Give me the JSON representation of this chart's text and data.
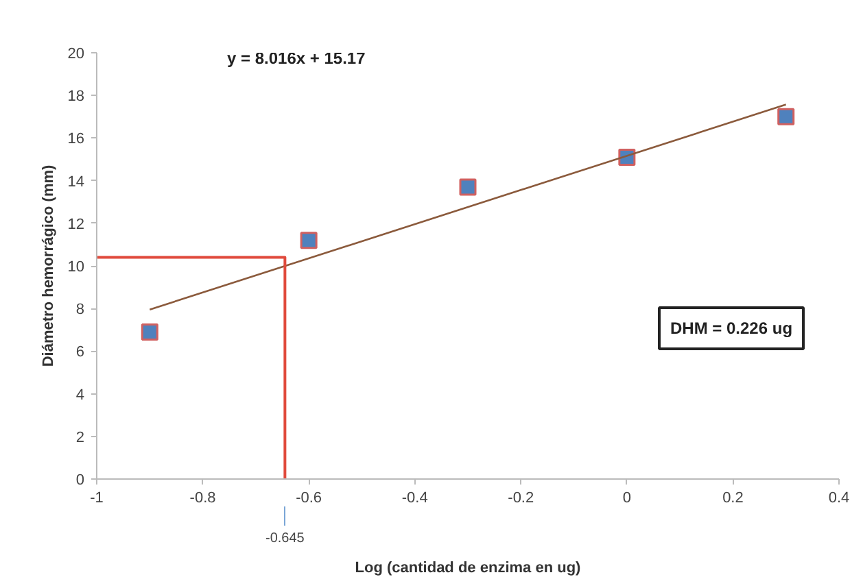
{
  "chart_data": {
    "type": "scatter",
    "xlabel": "Log (cantidad de enzima en ug)",
    "ylabel": "Diámetro hemorrágico (mm)",
    "x": [
      -0.9,
      -0.6,
      -0.3,
      0,
      0.3
    ],
    "series": [
      {
        "color": "#4f81bd",
        "marker": "square",
        "values": [
          6.9,
          11.2,
          13.7,
          15.1,
          17.0
        ]
      },
      {
        "type": "line",
        "color": "#8b5a3c",
        "x": [
          -0.9,
          0.3
        ],
        "values": [
          7.95,
          17.57
        ]
      },
      {
        "type": "line",
        "color": "#e04a3c",
        "x": [
          -1,
          -0.645,
          -0.645
        ],
        "values": [
          10.4,
          10.4,
          0
        ]
      }
    ],
    "annotations": [
      "y = 8.016x + 15.17",
      "-0.645",
      "DHM = 0.226 ug"
    ],
    "xlim": [
      -1,
      0.4
    ],
    "ylim": [
      0,
      20
    ],
    "xticks": [
      {
        "value": -1,
        "label": "-1"
      },
      -0.8,
      -0.6,
      -0.4,
      -0.2,
      0,
      0.2,
      0.4
    ],
    "yticks": [
      0,
      2,
      4,
      6,
      8,
      10,
      12,
      14,
      16,
      18,
      20
    ],
    "grid": false
  }
}
